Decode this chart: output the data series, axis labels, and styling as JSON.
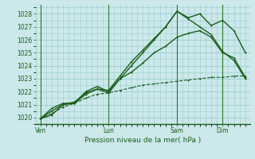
{
  "background_color": "#cce8ea",
  "grid_color": "#99cccc",
  "line_color": "#1a5e1a",
  "title": "Pression niveau de la mer( hPa )",
  "xtick_labels": [
    "Ven",
    "Lun",
    "Sam",
    "Dim"
  ],
  "xtick_pos": [
    0,
    3,
    6,
    8
  ],
  "xlim": [
    -0.2,
    9.2
  ],
  "ylim": [
    1019.5,
    1028.7
  ],
  "yticks": [
    1020,
    1021,
    1022,
    1023,
    1024,
    1025,
    1026,
    1027,
    1028
  ],
  "series": [
    {
      "x": [
        0,
        0.5,
        1.0,
        1.5,
        2.0,
        2.5,
        3.0,
        3.5,
        4.0,
        4.5,
        5.0,
        5.5,
        6.0,
        6.5,
        7.0,
        7.5,
        8.0,
        8.5,
        9.0
      ],
      "y": [
        1019.9,
        1020.2,
        1021.0,
        1021.2,
        1021.9,
        1022.2,
        1022.1,
        1023.2,
        1024.3,
        1025.2,
        1026.1,
        1027.0,
        1028.2,
        1027.7,
        1028.0,
        1027.1,
        1027.5,
        1026.7,
        1025.0
      ],
      "dashed": false,
      "lw": 1.0
    },
    {
      "x": [
        0,
        0.5,
        1.0,
        1.5,
        2.0,
        2.5,
        3.0,
        3.5,
        4.0,
        4.5,
        5.0,
        5.5,
        6.0,
        6.5,
        7.0,
        7.5,
        8.0,
        8.5,
        9.0
      ],
      "y": [
        1019.9,
        1020.5,
        1021.0,
        1021.1,
        1021.8,
        1022.2,
        1021.9,
        1023.0,
        1024.0,
        1025.0,
        1026.0,
        1027.0,
        1028.2,
        1027.6,
        1027.0,
        1026.4,
        1025.1,
        1024.4,
        1023.0
      ],
      "dashed": false,
      "lw": 1.0
    },
    {
      "x": [
        0,
        0.5,
        1.0,
        1.5,
        2.0,
        2.5,
        3.0,
        3.5,
        4.0,
        4.5,
        5.0,
        5.5,
        6.0,
        6.5,
        7.0,
        7.5,
        8.0,
        8.5,
        9.0
      ],
      "y": [
        1019.9,
        1020.7,
        1021.1,
        1021.1,
        1022.0,
        1022.4,
        1022.0,
        1023.0,
        1023.5,
        1024.2,
        1025.0,
        1025.5,
        1026.2,
        1026.5,
        1026.7,
        1026.2,
        1025.0,
        1024.6,
        1023.1
      ],
      "dashed": false,
      "lw": 1.0
    },
    {
      "x": [
        0,
        0.5,
        1.0,
        1.5,
        2.0,
        2.5,
        3.0,
        3.5,
        4.0,
        4.5,
        5.0,
        5.5,
        6.0,
        6.5,
        7.0,
        7.5,
        8.0,
        8.5,
        9.0
      ],
      "y": [
        1019.9,
        1020.3,
        1020.8,
        1021.1,
        1021.5,
        1021.8,
        1021.9,
        1022.1,
        1022.3,
        1022.5,
        1022.6,
        1022.7,
        1022.8,
        1022.9,
        1023.0,
        1023.1,
        1023.1,
        1023.2,
        1023.2
      ],
      "dashed": true,
      "lw": 0.8
    }
  ],
  "vlines": [
    0,
    3,
    6,
    8
  ],
  "vline_color": "#2d7a2d",
  "vline_lw": 0.8
}
